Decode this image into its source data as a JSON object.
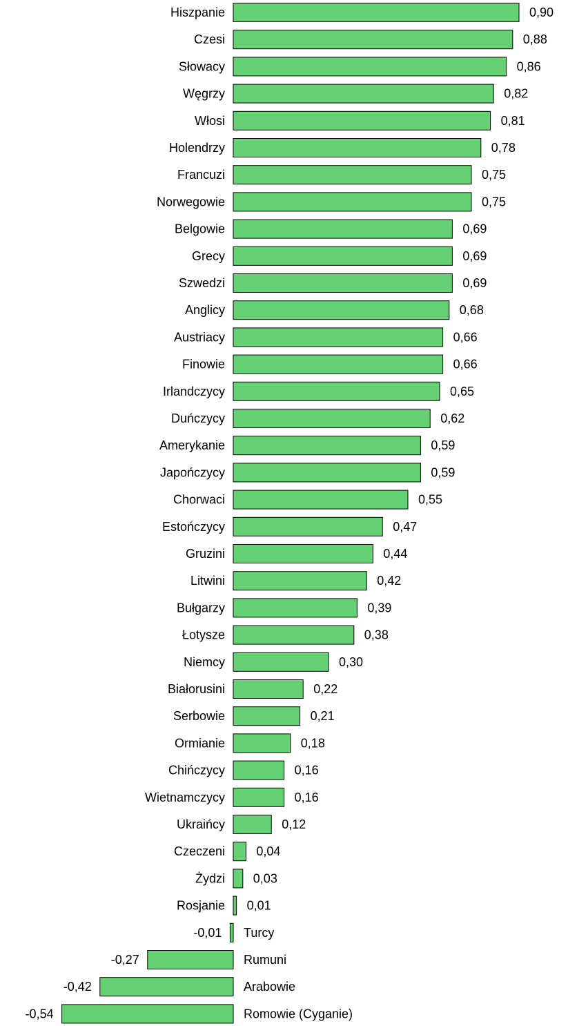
{
  "chart_data": {
    "type": "bar",
    "orientation": "horizontal",
    "title": "",
    "xlabel": "",
    "ylabel": "",
    "grid": false,
    "bar_color": "#66d174",
    "bar_edge_color": "#000000",
    "categories": [
      "Hiszpanie",
      "Czesi",
      "Słowacy",
      "Węgrzy",
      "Włosi",
      "Holendrzy",
      "Francuzi",
      "Norwegowie",
      "Belgowie",
      "Grecy",
      "Szwedzi",
      "Anglicy",
      "Austriacy",
      "Finowie",
      "Irlandczycy",
      "Duńczycy",
      "Amerykanie",
      "Japończycy",
      "Chorwaci",
      "Estończycy",
      "Gruzini",
      "Litwini",
      "Bułgarzy",
      "Łotysze",
      "Niemcy",
      "Białorusini",
      "Serbowie",
      "Ormianie",
      "Chińczycy",
      "Wietnamczycy",
      "Ukraińcy",
      "Czeczeni",
      "Żydzi",
      "Rosjanie",
      "Turcy",
      "Rumuni",
      "Arabowie",
      "Romowie (Cyganie)"
    ],
    "values": [
      0.9,
      0.88,
      0.86,
      0.82,
      0.81,
      0.78,
      0.75,
      0.75,
      0.69,
      0.69,
      0.69,
      0.68,
      0.66,
      0.66,
      0.65,
      0.62,
      0.59,
      0.59,
      0.55,
      0.47,
      0.44,
      0.42,
      0.39,
      0.38,
      0.3,
      0.22,
      0.21,
      0.18,
      0.16,
      0.16,
      0.12,
      0.04,
      0.03,
      0.01,
      -0.01,
      -0.27,
      -0.42,
      -0.54
    ],
    "value_labels": [
      "0,90",
      "0,88",
      "0,86",
      "0,82",
      "0,81",
      "0,78",
      "0,75",
      "0,75",
      "0,69",
      "0,69",
      "0,69",
      "0,68",
      "0,66",
      "0,66",
      "0,65",
      "0,62",
      "0,59",
      "0,59",
      "0,55",
      "0,47",
      "0,44",
      "0,42",
      "0,39",
      "0,38",
      "0,30",
      "0,22",
      "0,21",
      "0,18",
      "0,16",
      "0,16",
      "0,12",
      "0,04",
      "0,03",
      "0,01",
      "-0,01",
      "-0,27",
      "-0,42",
      "-0,54"
    ]
  }
}
